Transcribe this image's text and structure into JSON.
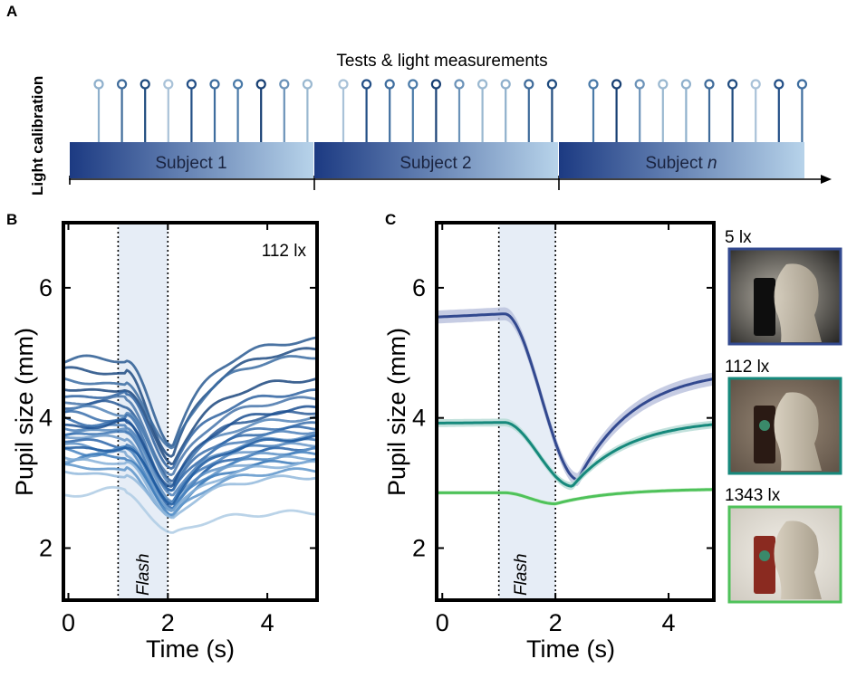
{
  "panel_a": {
    "letter": "A",
    "side_label": "Light calibration",
    "header": "Tests & light measurements",
    "subjects": [
      {
        "label": "Subject 1"
      },
      {
        "label": "Subject 2"
      },
      {
        "label_prefix": "Subject ",
        "label_italic": "n"
      }
    ],
    "pins_per_subject": 10,
    "pin_shades": [
      "#8fb0cc",
      "#3f6b9a",
      "#1f4b7e",
      "#a9c2d8",
      "#234f86",
      "#3e6d9e",
      "#4a7aa8",
      "#173f73",
      "#6b92b8",
      "#9ab8d0"
    ]
  },
  "chart_data": [
    {
      "panel": "B",
      "type": "line",
      "title": "",
      "annotation": "112 lx",
      "flash_label": "Flash",
      "flash_window": [
        1,
        2
      ],
      "xlabel": "Time (s)",
      "ylabel": "Pupil size (mm)",
      "xlim": [
        -0.1,
        5
      ],
      "ylim": [
        1.2,
        7
      ],
      "xticks": [
        0,
        2,
        4
      ],
      "yticks": [
        2,
        4,
        6
      ],
      "series": [
        {
          "name": "subject-trace-01",
          "start": 4.88,
          "min": 3.6,
          "end": 5.2,
          "color": "#2a5a92"
        },
        {
          "name": "subject-trace-02",
          "start": 4.7,
          "min": 3.4,
          "end": 5.05,
          "color": "#1f4b82"
        },
        {
          "name": "subject-trace-03",
          "start": 4.55,
          "min": 3.5,
          "end": 4.95,
          "color": "#3b6ca2"
        },
        {
          "name": "subject-trace-04",
          "start": 4.45,
          "min": 3.3,
          "end": 4.6,
          "color": "#1b467e"
        },
        {
          "name": "subject-trace-05",
          "start": 4.35,
          "min": 3.25,
          "end": 4.4,
          "color": "#2e62a0"
        },
        {
          "name": "subject-trace-06",
          "start": 4.25,
          "min": 3.1,
          "end": 4.3,
          "color": "#4674aa"
        },
        {
          "name": "subject-trace-07",
          "start": 4.18,
          "min": 3.0,
          "end": 4.1,
          "color": "#2b5c98"
        },
        {
          "name": "subject-trace-08",
          "start": 4.1,
          "min": 3.0,
          "end": 4.0,
          "color": "#5585b8"
        },
        {
          "name": "subject-trace-09",
          "start": 4.02,
          "min": 2.9,
          "end": 3.9,
          "color": "#3a6fac"
        },
        {
          "name": "subject-trace-10",
          "start": 3.95,
          "min": 2.85,
          "end": 3.85,
          "color": "#2f67a8"
        },
        {
          "name": "subject-trace-11",
          "start": 3.88,
          "min": 2.8,
          "end": 3.8,
          "color": "#4b7fb8"
        },
        {
          "name": "subject-trace-12",
          "start": 3.8,
          "min": 2.75,
          "end": 3.72,
          "color": "#5b8cc0"
        },
        {
          "name": "subject-trace-13",
          "start": 3.74,
          "min": 2.7,
          "end": 3.65,
          "color": "#3d76b4"
        },
        {
          "name": "subject-trace-14",
          "start": 3.68,
          "min": 2.65,
          "end": 3.6,
          "color": "#6a98c8"
        },
        {
          "name": "subject-trace-15",
          "start": 3.62,
          "min": 2.62,
          "end": 3.55,
          "color": "#2a64a8"
        },
        {
          "name": "subject-trace-16",
          "start": 3.56,
          "min": 2.6,
          "end": 3.5,
          "color": "#5d91c6"
        },
        {
          "name": "subject-trace-17",
          "start": 3.5,
          "min": 2.58,
          "end": 3.45,
          "color": "#4683c0"
        },
        {
          "name": "subject-trace-18",
          "start": 3.44,
          "min": 2.55,
          "end": 3.4,
          "color": "#78a4d0"
        },
        {
          "name": "subject-trace-19",
          "start": 3.38,
          "min": 2.52,
          "end": 3.35,
          "color": "#3c7bbb"
        },
        {
          "name": "subject-trace-20",
          "start": 3.3,
          "min": 2.5,
          "end": 3.3,
          "color": "#86b0d8"
        },
        {
          "name": "subject-trace-21",
          "start": 3.22,
          "min": 2.48,
          "end": 3.2,
          "color": "#5c94ca"
        },
        {
          "name": "subject-trace-22",
          "start": 3.15,
          "min": 2.45,
          "end": 3.1,
          "color": "#92b8dc"
        },
        {
          "name": "subject-trace-23",
          "start": 3.55,
          "min": 2.7,
          "end": 3.7,
          "color": "#1d5aa0"
        },
        {
          "name": "subject-trace-24",
          "start": 3.9,
          "min": 2.95,
          "end": 4.15,
          "color": "#1b4f90"
        },
        {
          "name": "subject-trace-25",
          "start": 2.85,
          "min": 2.2,
          "end": 2.55,
          "color": "#aecbe4"
        }
      ]
    },
    {
      "panel": "C",
      "type": "line",
      "title": "",
      "flash_label": "Flash",
      "flash_window": [
        1,
        2
      ],
      "xlabel": "Time (s)",
      "ylabel": "Pupil size (mm)",
      "xlim": [
        -0.1,
        4.8
      ],
      "ylim": [
        1.2,
        7
      ],
      "xticks": [
        0,
        2,
        4
      ],
      "yticks": [
        2,
        4,
        6
      ],
      "series": [
        {
          "name": "5 lx",
          "start": 5.55,
          "pre_end": 5.6,
          "min": 3.05,
          "t_min": 2.4,
          "end": 4.6,
          "band": 0.1,
          "color": "#32498f",
          "band_color": "#b8bfdc"
        },
        {
          "name": "112 lx",
          "start": 3.92,
          "pre_end": 3.93,
          "min": 2.95,
          "t_min": 2.3,
          "end": 3.9,
          "band": 0.06,
          "color": "#16897c",
          "band_color": "#b3d9d3"
        },
        {
          "name": "1343 lx",
          "start": 2.85,
          "pre_end": 2.85,
          "min": 2.68,
          "t_min": 2.0,
          "end": 2.9,
          "band": 0.03,
          "color": "#4fc25a",
          "band_color": "#c8ecc9"
        }
      ]
    }
  ],
  "photo_legend": [
    {
      "label": "5 lx",
      "border": "#32498f"
    },
    {
      "label": "112 lx",
      "border": "#16897c"
    },
    {
      "label": "1343 lx",
      "border": "#4fc25a"
    }
  ]
}
